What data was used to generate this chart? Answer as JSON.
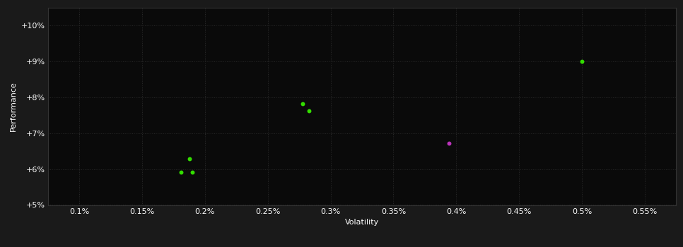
{
  "background_color": "#1a1a1a",
  "plot_bg_color": "#0a0a0a",
  "grid_color": "#2a2a2a",
  "text_color": "#ffffff",
  "xlabel": "Volatility",
  "ylabel": "Performance",
  "xlim": [
    0.00075,
    0.00575
  ],
  "ylim": [
    0.05,
    0.105
  ],
  "xticks": [
    0.001,
    0.0015,
    0.002,
    0.0025,
    0.003,
    0.0035,
    0.004,
    0.0045,
    0.005,
    0.0055
  ],
  "xtick_labels": [
    "0.1%",
    "0.15%",
    "0.2%",
    "0.25%",
    "0.3%",
    "0.35%",
    "0.4%",
    "0.45%",
    "0.5%",
    "0.55%"
  ],
  "yticks": [
    0.05,
    0.06,
    0.07,
    0.08,
    0.09,
    0.1
  ],
  "ytick_labels": [
    "+5%",
    "+6%",
    "+7%",
    "+8%",
    "+9%",
    "+10%"
  ],
  "green_points": [
    [
      0.00188,
      0.0628
    ],
    [
      0.00181,
      0.0592
    ],
    [
      0.0019,
      0.0592
    ],
    [
      0.00278,
      0.0782
    ],
    [
      0.00283,
      0.0762
    ],
    [
      0.005,
      0.09
    ]
  ],
  "magenta_points": [
    [
      0.00394,
      0.0672
    ]
  ],
  "green_color": "#33dd00",
  "magenta_color": "#bb33bb",
  "marker_size": 18,
  "axis_fontsize": 8,
  "tick_fontsize": 8,
  "label_fontsize": 8
}
